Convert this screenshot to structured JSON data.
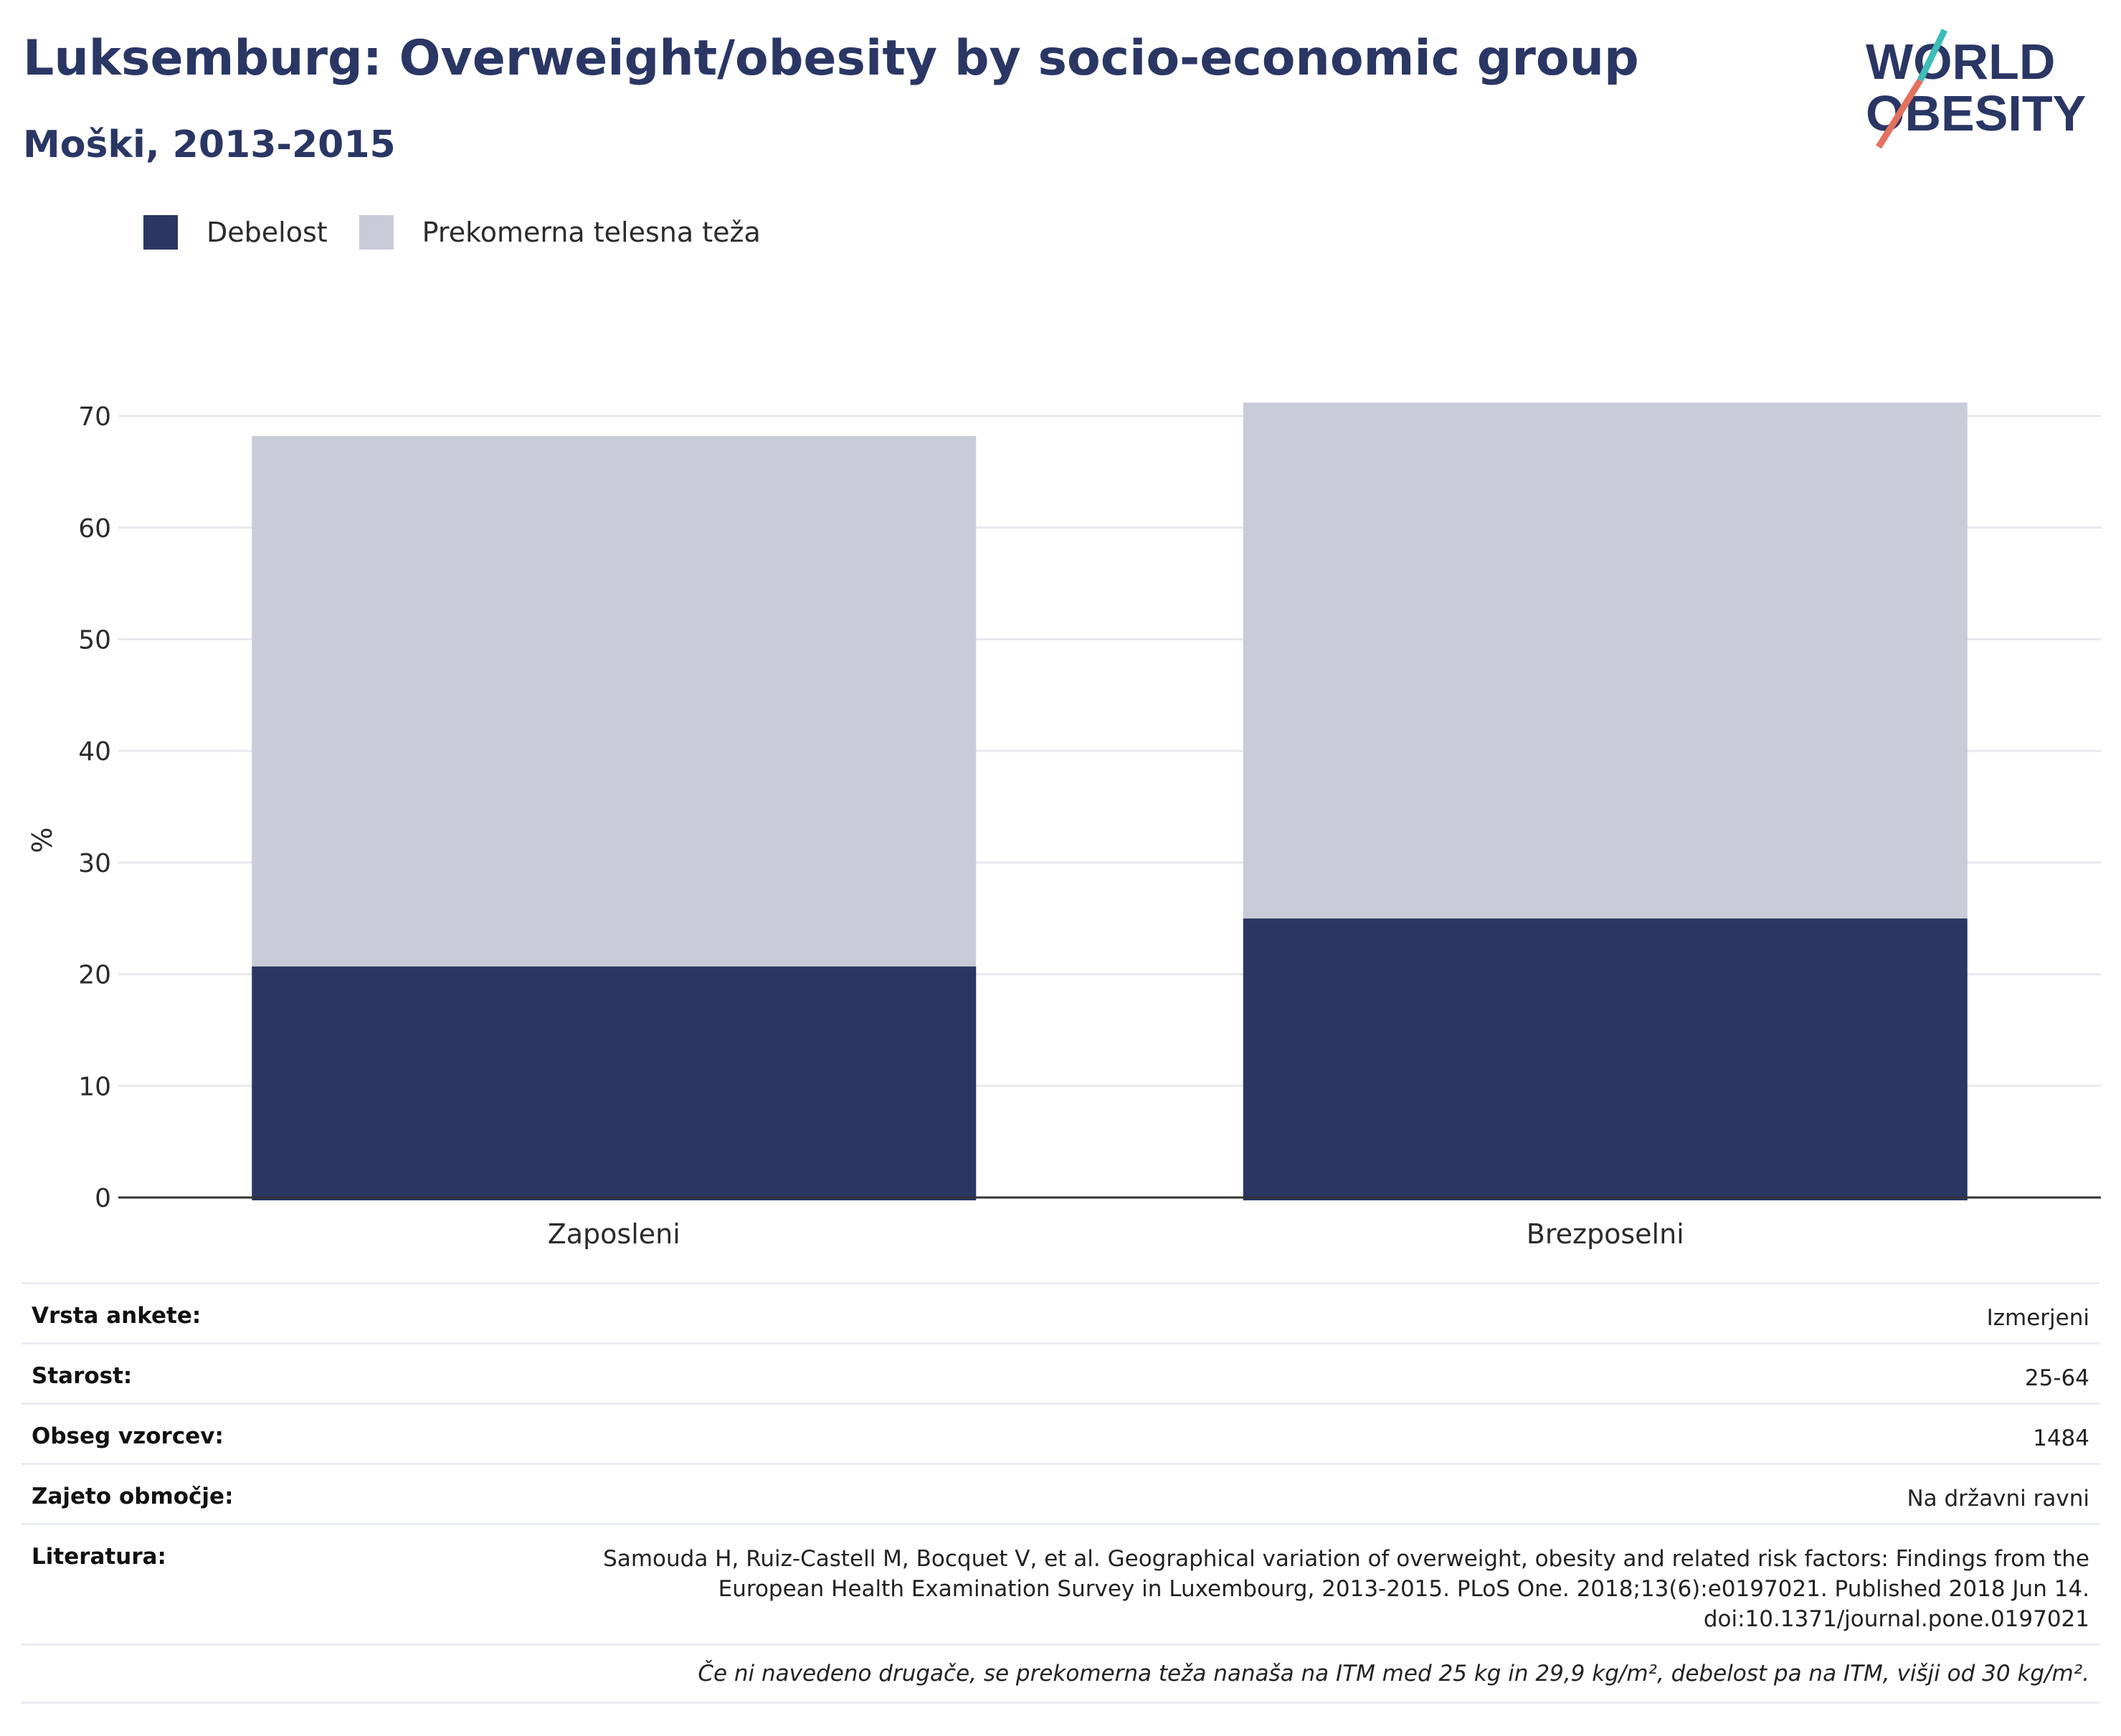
{
  "header": {
    "title": "Luksemburg: Overweight/obesity by socio-economic group",
    "subtitle": "Moški, 2013-2015"
  },
  "logo": {
    "line1": "WORLD",
    "line2": "OBESITY"
  },
  "colors": {
    "obesity": "#2a3664",
    "overweight": "#c9ccd8",
    "text": "#2a3664"
  },
  "chart_data": {
    "type": "bar",
    "stacked": true,
    "categories": [
      "Zaposleni",
      "Brezposelni"
    ],
    "series": [
      {
        "name": "Debelost",
        "values": [
          20.7,
          25.0
        ],
        "color": "#2a3664"
      },
      {
        "name": "Prekomerna telesna teža",
        "values": [
          47.5,
          46.2
        ],
        "color": "#c9ccd8"
      }
    ],
    "ylabel": "%",
    "ylim": [
      0,
      75
    ],
    "yticks": [
      0,
      10,
      20,
      30,
      40,
      50,
      60,
      70
    ],
    "grid": true,
    "legend_position": "top-left"
  },
  "info": {
    "rows": [
      {
        "label": "Vrsta ankete:",
        "value": "Izmerjeni"
      },
      {
        "label": "Starost:",
        "value": "25-64"
      },
      {
        "label": "Obseg vzorcev:",
        "value": "1484"
      },
      {
        "label": "Zajeto območje:",
        "value": "Na državni ravni"
      },
      {
        "label": "Literatura:",
        "value": "Samouda H, Ruiz-Castell M, Bocquet V, et al. Geographical variation of overweight, obesity and related risk factors: Findings from the European Health Examination Survey in Luxembourg, 2013-2015. PLoS One. 2018;13(6):e0197021. Published 2018 Jun 14. doi:10.1371/journal.pone.0197021"
      }
    ],
    "note": "Če ni navedeno drugače, se prekomerna teža nanaša na ITM med 25 kg in 29,9 kg/m², debelost pa na ITM, višji od 30 kg/m²."
  }
}
